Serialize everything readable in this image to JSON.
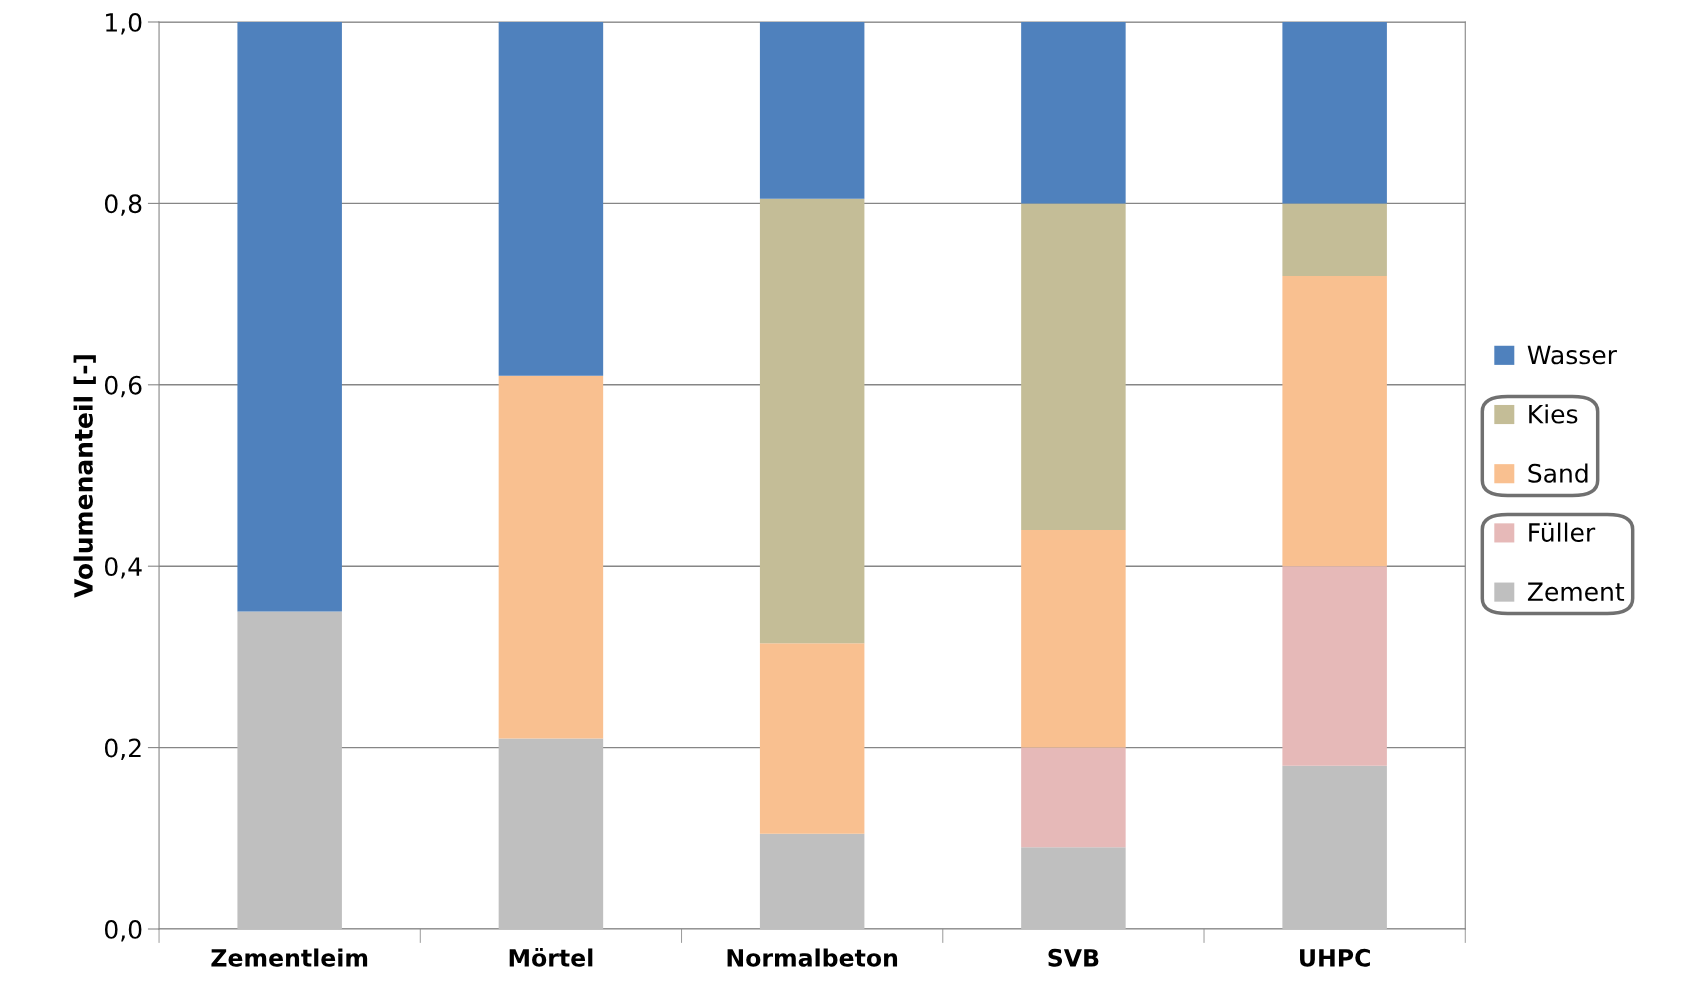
{
  "chart_data": {
    "type": "bar",
    "stacked": true,
    "ylabel": "Volumenanteil [-]",
    "categories": [
      "Zementleim",
      "Mörtel",
      "Normalbeton",
      "SVB",
      "UHPC"
    ],
    "series": [
      {
        "name": "Zement",
        "color": "#bfbfbf",
        "values": [
          0.35,
          0.21,
          0.105,
          0.09,
          0.18
        ]
      },
      {
        "name": "Füller",
        "color": "#e6b9b8",
        "values": [
          null,
          null,
          null,
          0.11,
          0.22
        ]
      },
      {
        "name": "Sand",
        "color": "#f9c090",
        "values": [
          null,
          0.4,
          0.21,
          0.24,
          0.32
        ]
      },
      {
        "name": "Kies",
        "color": "#c4bd97",
        "values": [
          null,
          null,
          0.49,
          0.36,
          0.08
        ]
      },
      {
        "name": "Wasser",
        "color": "#4f81bd",
        "values": [
          0.65,
          0.39,
          0.195,
          0.2,
          0.2
        ]
      }
    ],
    "ylim": [
      0,
      1
    ],
    "yticks": [
      {
        "value": 0,
        "label": "0,0"
      },
      {
        "value": 0.2,
        "label": "0,2"
      },
      {
        "value": 0.4,
        "label": "0,4"
      },
      {
        "value": 0.6,
        "label": "0,6"
      },
      {
        "value": 0.8,
        "label": "0,8"
      },
      {
        "value": 1,
        "label": "1,0"
      }
    ],
    "grid": "y",
    "legend": "right"
  }
}
